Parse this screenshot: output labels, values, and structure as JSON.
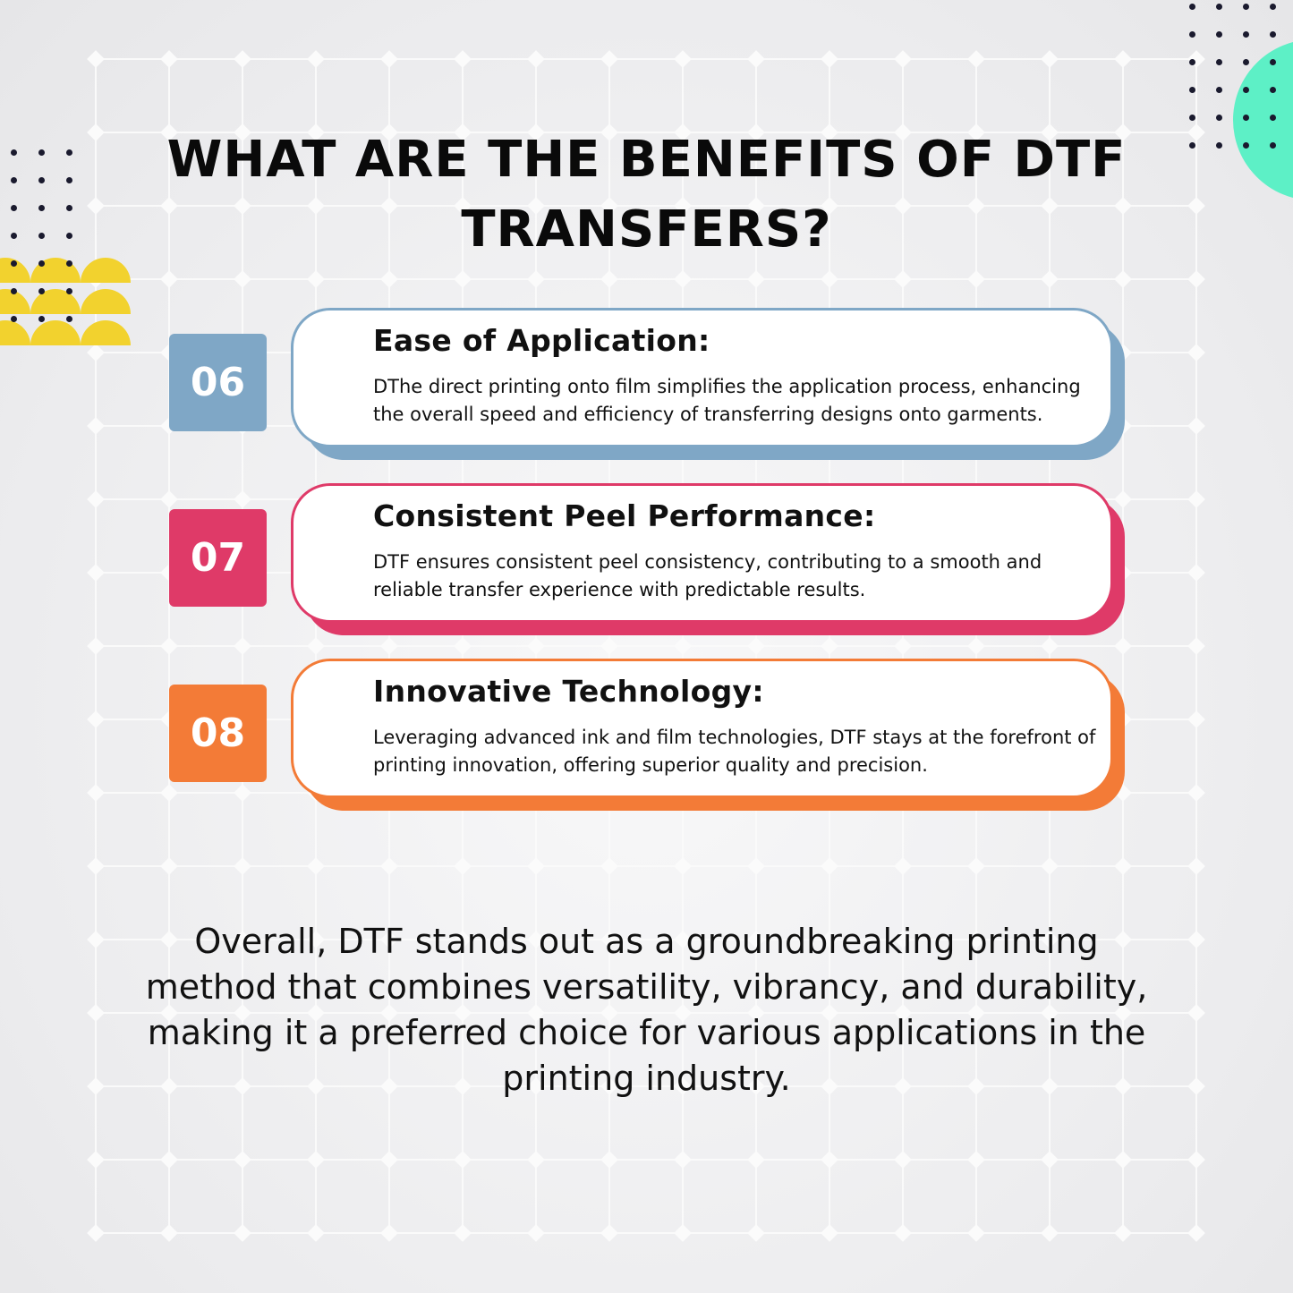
{
  "title": "WHAT ARE THE BENEFITS OF DTF TRANSFERS?",
  "benefits": [
    {
      "number": "06",
      "heading": "Ease of Application:",
      "text": "DThe direct printing onto film simplifies the application process, enhancing the overall speed and efficiency of transferring designs onto garments.",
      "color": "#7fa7c6"
    },
    {
      "number": "07",
      "heading": "Consistent Peel Performance:",
      "text": "DTF ensures consistent peel consistency, contributing to a smooth and reliable transfer experience with predictable results.",
      "color": "#df3a68"
    },
    {
      "number": "08",
      "heading": "Innovative Technology:",
      "text": "Leveraging advanced ink and film technologies, DTF stays at the forefront of printing innovation, offering superior quality and precision.",
      "color": "#f37b37"
    }
  ],
  "summary": "Overall, DTF stands out as a groundbreaking printing method that combines versatility, vibrancy, and durability, making it a preferred choice for various applications in the printing industry.",
  "colors": {
    "accent_yellow": "#f2d22e",
    "accent_mint": "#5df0c6"
  }
}
